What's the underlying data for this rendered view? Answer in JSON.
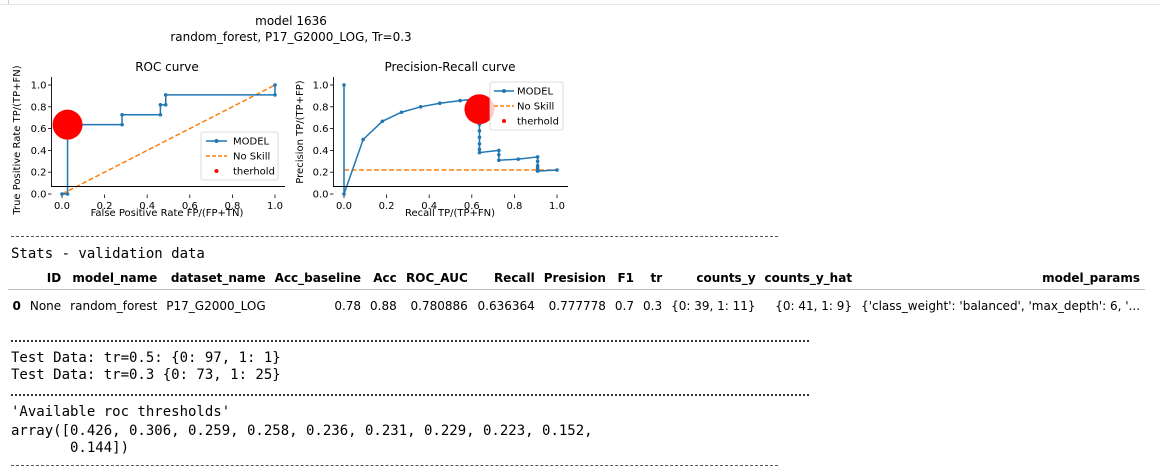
{
  "figure": {
    "title_line1": "model 1636",
    "title_line2": "random_forest, P17_G2000_LOG, Tr=0.3"
  },
  "chart_data": [
    {
      "type": "line",
      "title": "ROC curve",
      "xlabel": "False Positive Rate  FP/(FP+TN)",
      "ylabel": "True Positive Rate TP/(TP+FN)",
      "xlim": [
        0.0,
        1.0
      ],
      "ylim": [
        0.0,
        1.0
      ],
      "xticks": [
        "0.0",
        "0.2",
        "0.4",
        "0.6",
        "0.8",
        "1.0"
      ],
      "yticks": [
        "0.0",
        "0.2",
        "0.4",
        "0.6",
        "0.8",
        "1.0"
      ],
      "grid": false,
      "legend_position": "lower-right",
      "series": [
        {
          "name": "MODEL",
          "color": "#1f77b4",
          "x": [
            0.0,
            0.026,
            0.026,
            0.282,
            0.282,
            0.462,
            0.462,
            0.487,
            0.487,
            1.0,
            1.0
          ],
          "y": [
            0.0,
            0.0,
            0.636,
            0.636,
            0.727,
            0.727,
            0.818,
            0.818,
            0.909,
            0.909,
            1.0
          ]
        },
        {
          "name": "No Skill",
          "color": "#ff7f0e",
          "style": "dashed",
          "x": [
            0.0,
            1.0
          ],
          "y": [
            0.0,
            1.0
          ]
        }
      ],
      "threshold_point": {
        "name": "therhold",
        "x": 0.026,
        "y": 0.636,
        "color": "#ff0000"
      }
    },
    {
      "type": "line",
      "title": "Precision-Recall curve",
      "xlabel": "Recall TP/(TP+FN)",
      "ylabel": "Precision TP/(TP+FP)",
      "xlim": [
        0.0,
        1.0
      ],
      "ylim": [
        0.0,
        1.0
      ],
      "xticks": [
        "0.0",
        "0.2",
        "0.4",
        "0.6",
        "0.8",
        "1.0"
      ],
      "yticks": [
        "0.0",
        "0.2",
        "0.4",
        "0.6",
        "0.8",
        "1.0"
      ],
      "grid": false,
      "legend_position": "upper-right",
      "series": [
        {
          "name": "MODEL",
          "color": "#1f77b4",
          "x": [
            0.0,
            0.0,
            0.09,
            0.18,
            0.27,
            0.36,
            0.45,
            0.545,
            0.636,
            0.636,
            0.636,
            0.636,
            0.636,
            0.636,
            0.636,
            0.636,
            0.727,
            0.727,
            0.727,
            0.818,
            0.909,
            0.909,
            0.909,
            0.909,
            0.909,
            0.909,
            1.0
          ],
          "y": [
            1.0,
            0.0,
            0.5,
            0.667,
            0.75,
            0.8,
            0.833,
            0.857,
            0.875,
            0.7,
            0.64,
            0.58,
            0.52,
            0.46,
            0.41,
            0.38,
            0.4,
            0.36,
            0.31,
            0.32,
            0.34,
            0.3,
            0.26,
            0.24,
            0.22,
            0.21,
            0.22
          ]
        },
        {
          "name": "No Skill",
          "color": "#ff7f0e",
          "style": "dashed",
          "x": [
            0.0,
            1.0
          ],
          "y": [
            0.22,
            0.22
          ]
        }
      ],
      "threshold_point": {
        "name": "therhold",
        "x": 0.636,
        "y": 0.778,
        "color": "#ff0000"
      }
    }
  ],
  "output": {
    "stats_header": "Stats - validation data",
    "test_line1": "Test Data: tr=0.5: {0: 97, 1: 1}",
    "test_line2": "Test Data: tr=0.3 {0: 73, 1: 25}",
    "thresholds_title": "'Available roc thresholds'",
    "array_line1": "array([0.426, 0.306, 0.259, 0.258, 0.236, 0.231, 0.229, 0.223, 0.152,",
    "array_line2": "       0.144])"
  },
  "stats_table": {
    "columns": [
      "",
      "ID",
      "model_name",
      "dataset_name",
      "Acc_baseline",
      "Acc",
      "ROC_AUC",
      "Recall",
      "Presision",
      "F1",
      "tr",
      "counts_y",
      "counts_y_hat",
      "model_params"
    ],
    "rows": [
      [
        "0",
        "None",
        "random_forest",
        "P17_G2000_LOG",
        "0.78",
        "0.88",
        "0.780886",
        "0.636364",
        "0.777778",
        "0.7",
        "0.3",
        "{0: 39, 1: 11}",
        "{0: 41, 1: 9}",
        "{'class_weight': 'balanced', 'max_depth': 6, '..."
      ]
    ]
  }
}
